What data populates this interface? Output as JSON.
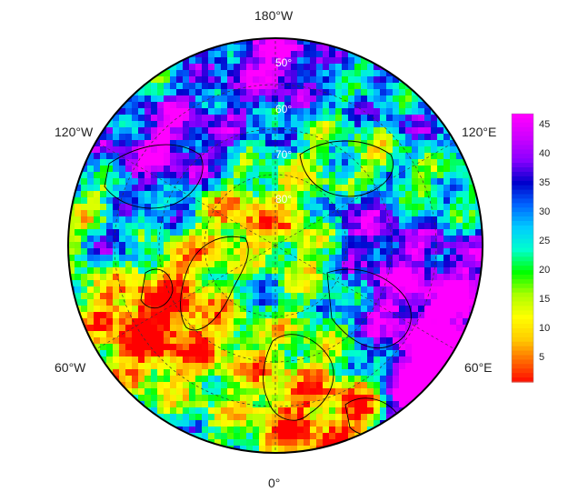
{
  "map": {
    "projection": "north-polar-stereographic",
    "lon_labels": {
      "top": "180°W",
      "bottom": "0°",
      "left_upper": "120°W",
      "right_upper": "120°E",
      "left_lower": "60°W",
      "right_lower": "60°E"
    },
    "lat_labels": [
      "50°",
      "60°",
      "70°",
      "80°"
    ],
    "colorbar": {
      "ticks": [
        "45",
        "40",
        "35",
        "30",
        "25",
        "20",
        "15",
        "10",
        "5"
      ],
      "min": 1,
      "max": 47
    },
    "colors": {
      "scale": [
        "#ff0000",
        "#ff6600",
        "#ffcc00",
        "#ffff00",
        "#aaff00",
        "#00ff00",
        "#00ffcc",
        "#00ccff",
        "#0066ff",
        "#0000cc",
        "#8800ff",
        "#cc00ff",
        "#ff00ff"
      ],
      "outline": "#000000",
      "coast": "#000000",
      "grid": "#333333"
    }
  }
}
